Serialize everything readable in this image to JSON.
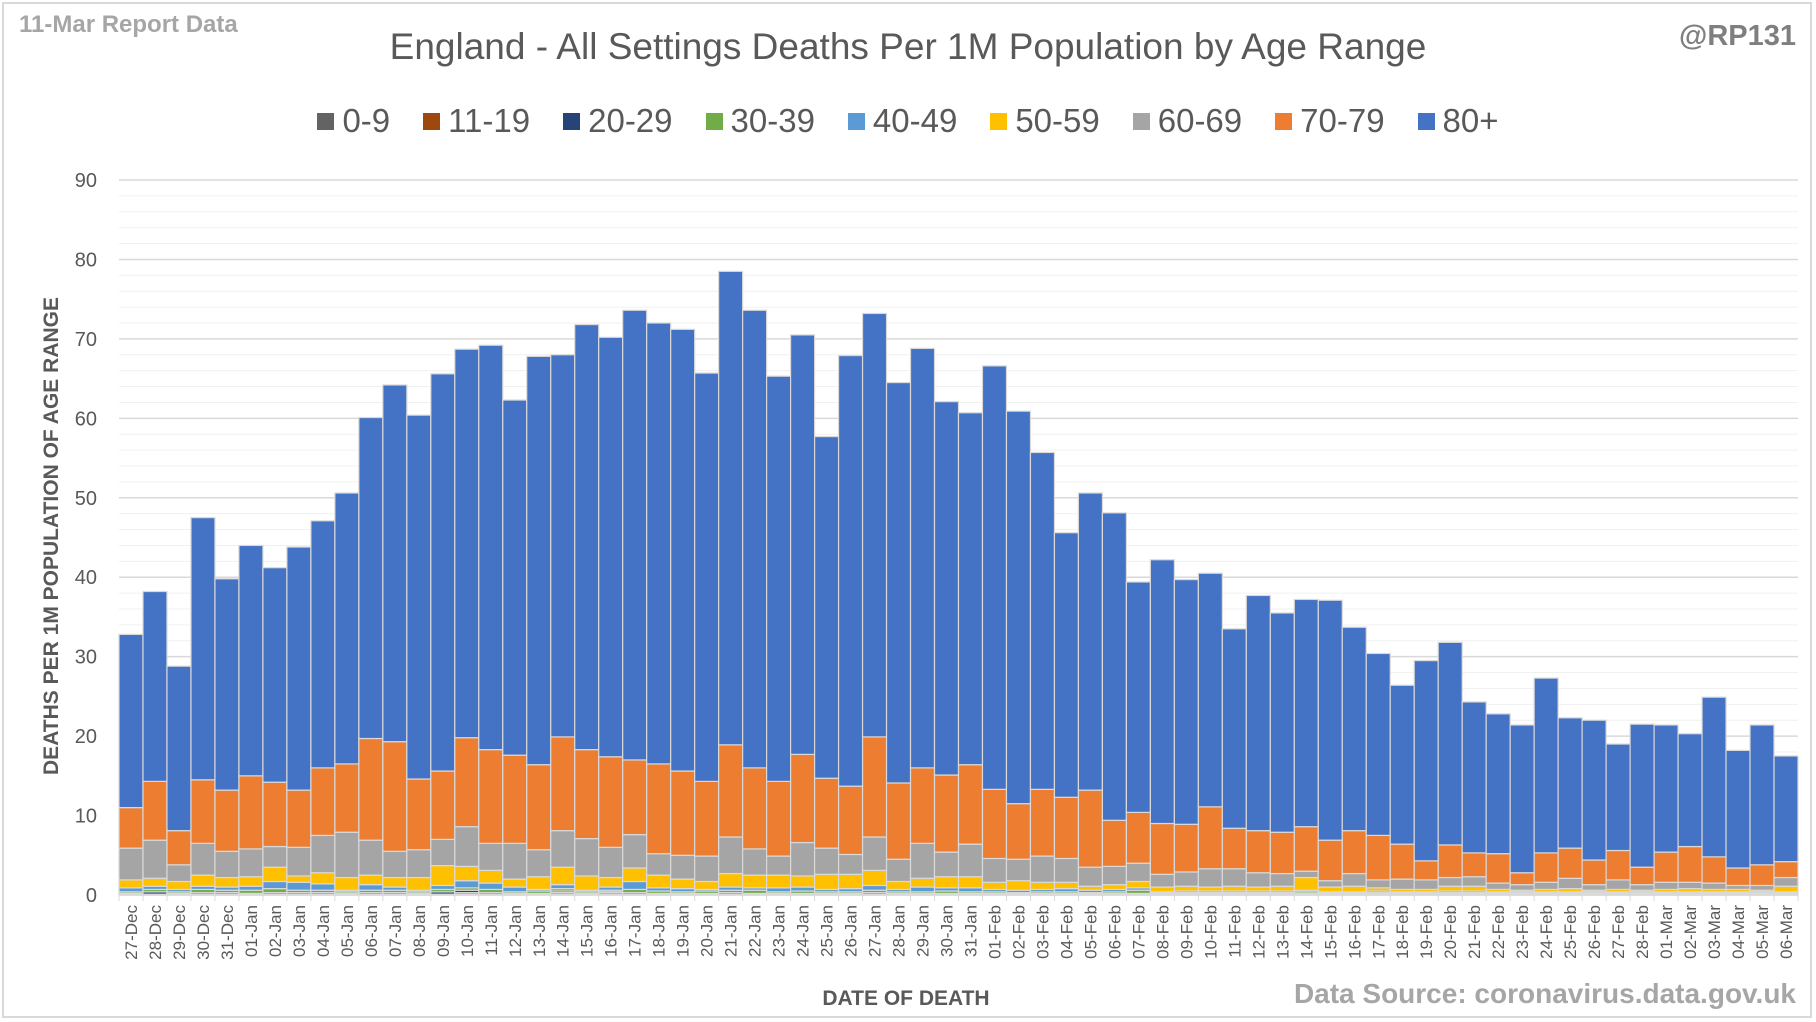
{
  "header": {
    "report_label": "11-Mar Report Data",
    "handle": "@RP131",
    "source": "Data Source: coronavirus.data.gov.uk"
  },
  "chart_data": {
    "type": "bar",
    "stacked": true,
    "title": "England - All Settings Deaths Per 1M Population by Age Range",
    "xlabel": "DATE OF DEATH",
    "ylabel": "DEATHS PER 1M POPULATION OF AGE RANGE",
    "ylim": [
      0,
      90
    ],
    "yticks": [
      0,
      10,
      20,
      30,
      40,
      50,
      60,
      70,
      80,
      90
    ],
    "grid": true,
    "legend_position": "top",
    "categories": [
      "27-Dec",
      "28-Dec",
      "29-Dec",
      "30-Dec",
      "31-Dec",
      "01-Jan",
      "02-Jan",
      "03-Jan",
      "04-Jan",
      "05-Jan",
      "06-Jan",
      "07-Jan",
      "08-Jan",
      "09-Jan",
      "10-Jan",
      "11-Jan",
      "12-Jan",
      "13-Jan",
      "14-Jan",
      "15-Jan",
      "16-Jan",
      "17-Jan",
      "18-Jan",
      "19-Jan",
      "20-Jan",
      "21-Jan",
      "22-Jan",
      "23-Jan",
      "24-Jan",
      "25-Jan",
      "26-Jan",
      "27-Jan",
      "28-Jan",
      "29-Jan",
      "30-Jan",
      "31-Jan",
      "01-Feb",
      "02-Feb",
      "03-Feb",
      "04-Feb",
      "05-Feb",
      "06-Feb",
      "07-Feb",
      "08-Feb",
      "09-Feb",
      "10-Feb",
      "11-Feb",
      "12-Feb",
      "13-Feb",
      "14-Feb",
      "15-Feb",
      "16-Feb",
      "17-Feb",
      "18-Feb",
      "19-Feb",
      "20-Feb",
      "21-Feb",
      "22-Feb",
      "23-Feb",
      "24-Feb",
      "25-Feb",
      "26-Feb",
      "27-Feb",
      "28-Feb",
      "01-Mar",
      "02-Mar",
      "03-Mar",
      "04-Mar",
      "05-Mar",
      "06-Mar"
    ],
    "series": [
      {
        "name": "0-9",
        "color": "#636363",
        "values": [
          0.1,
          0.1,
          0.1,
          0.1,
          0.1,
          0.1,
          0.1,
          0.1,
          0.1,
          0.1,
          0.1,
          0.1,
          0.1,
          0.1,
          0.1,
          0.1,
          0.1,
          0.1,
          0.1,
          0.1,
          0.1,
          0.1,
          0.1,
          0.1,
          0.1,
          0.1,
          0.1,
          0.1,
          0.1,
          0.1,
          0.1,
          0.1,
          0.1,
          0.1,
          0.1,
          0.1,
          0.1,
          0.1,
          0.1,
          0.1,
          0.1,
          0.1,
          0.1,
          0.1,
          0.1,
          0.1,
          0.1,
          0.1,
          0.1,
          0.1,
          0.1,
          0.1,
          0.1,
          0.1,
          0.1,
          0.1,
          0.1,
          0.1,
          0.1,
          0.1,
          0.1,
          0.1,
          0.1,
          0.1,
          0.1,
          0.1,
          0.1,
          0.1,
          0.1,
          0.1
        ]
      },
      {
        "name": "11-19",
        "color": "#9e480e",
        "values": [
          0,
          0,
          0,
          0,
          0,
          0,
          0,
          0,
          0,
          0,
          0,
          0,
          0,
          0,
          0.2,
          0,
          0,
          0,
          0.2,
          0,
          0.2,
          0,
          0,
          0,
          0,
          0,
          0,
          0,
          0,
          0,
          0,
          0,
          0,
          0,
          0,
          0,
          0,
          0,
          0,
          0,
          0,
          0,
          0,
          0,
          0,
          0,
          0,
          0,
          0,
          0,
          0,
          0,
          0,
          0,
          0,
          0,
          0,
          0,
          0,
          0,
          0,
          0,
          0,
          0,
          0,
          0,
          0,
          0,
          0,
          0
        ]
      },
      {
        "name": "20-29",
        "color": "#264478",
        "values": [
          0.1,
          0.3,
          0.1,
          0.2,
          0.2,
          0.1,
          0.2,
          0.2,
          0.2,
          0.1,
          0.2,
          0.2,
          0.1,
          0.3,
          0.3,
          0.2,
          0.1,
          0.1,
          0.2,
          0.1,
          0.1,
          0.2,
          0.1,
          0.1,
          0.1,
          0.2,
          0.1,
          0.1,
          0.1,
          0.1,
          0.1,
          0.2,
          0.1,
          0.1,
          0.1,
          0.1,
          0.1,
          0.1,
          0.1,
          0.1,
          0.1,
          0.1,
          0.1,
          0.1,
          0.1,
          0.1,
          0.1,
          0.1,
          0.1,
          0.1,
          0.1,
          0.1,
          0.1,
          0.1,
          0.1,
          0.1,
          0.1,
          0.1,
          0.1,
          0.1,
          0.1,
          0.1,
          0.1,
          0.1,
          0.1,
          0.1,
          0.1,
          0.1,
          0.1,
          0.1
        ]
      },
      {
        "name": "30-39",
        "color": "#70ad47",
        "values": [
          0.2,
          0.3,
          0.2,
          0.4,
          0.3,
          0.4,
          0.5,
          0.3,
          0.3,
          0.2,
          0.3,
          0.3,
          0.2,
          0.3,
          0.3,
          0.4,
          0.2,
          0.3,
          0.3,
          0.2,
          0.2,
          0.4,
          0.3,
          0.2,
          0.3,
          0.3,
          0.4,
          0.2,
          0.3,
          0.2,
          0.2,
          0.3,
          0.2,
          0.2,
          0.3,
          0.2,
          0.2,
          0.1,
          0.2,
          0.2,
          0.1,
          0.2,
          0.4,
          0.1,
          0.1,
          0.1,
          0.1,
          0.1,
          0.1,
          0.2,
          0.1,
          0.1,
          0.1,
          0.1,
          0.1,
          0.1,
          0.1,
          0.1,
          0.1,
          0.1,
          0.1,
          0.1,
          0.1,
          0.1,
          0.1,
          0.1,
          0.1,
          0.1,
          0.1,
          0.1
        ]
      },
      {
        "name": "40-49",
        "color": "#5b9bd5",
        "values": [
          0.5,
          0.4,
          0.3,
          0.4,
          0.4,
          0.5,
          0.9,
          1.0,
          0.8,
          0.2,
          0.7,
          0.4,
          0.2,
          0.5,
          0.9,
          0.8,
          0.6,
          0.2,
          0.5,
          0.2,
          0.4,
          1.0,
          0.4,
          0.4,
          0.2,
          0.4,
          0.3,
          0.5,
          0.5,
          0.3,
          0.4,
          0.6,
          0.3,
          0.6,
          0.4,
          0.5,
          0.3,
          0.3,
          0.3,
          0.4,
          0.3,
          0.3,
          0.3,
          0.1,
          0.2,
          0.2,
          0.2,
          0.2,
          0.2,
          0.2,
          0.1,
          0.1,
          0.2,
          0.1,
          0.1,
          0.2,
          0.2,
          0.1,
          0.1,
          0.1,
          0.1,
          0.1,
          0.1,
          0.1,
          0.1,
          0.1,
          0.1,
          0.1,
          0.1,
          0.1
        ]
      },
      {
        "name": "50-59",
        "color": "#ffc000",
        "values": [
          1.0,
          1.0,
          1.0,
          1.4,
          1.2,
          1.2,
          1.8,
          0.8,
          1.4,
          1.6,
          1.2,
          1.2,
          1.6,
          2.5,
          1.8,
          1.6,
          1.0,
          1.6,
          2.2,
          1.8,
          1.2,
          1.7,
          1.6,
          1.2,
          1.0,
          1.7,
          1.6,
          1.6,
          1.4,
          1.9,
          1.8,
          1.9,
          1.0,
          1.1,
          1.4,
          1.4,
          0.9,
          1.2,
          0.9,
          0.8,
          0.5,
          0.6,
          0.8,
          0.6,
          0.6,
          0.5,
          0.6,
          0.5,
          0.6,
          1.6,
          0.6,
          0.7,
          0.4,
          0.3,
          0.3,
          0.6,
          0.6,
          0.3,
          0.2,
          0.3,
          0.4,
          0.2,
          0.3,
          0.2,
          0.3,
          0.4,
          0.3,
          0.3,
          0.2,
          0.7
        ]
      },
      {
        "name": "60-69",
        "color": "#a5a5a5",
        "values": [
          4.0,
          4.8,
          2.1,
          4.0,
          3.3,
          3.5,
          2.6,
          3.6,
          4.7,
          5.7,
          4.4,
          3.3,
          3.5,
          3.3,
          5.0,
          3.4,
          4.5,
          3.4,
          4.6,
          4.7,
          3.8,
          4.2,
          2.7,
          3.0,
          3.2,
          4.6,
          3.3,
          2.4,
          4.2,
          3.3,
          2.5,
          4.2,
          2.8,
          4.4,
          3.1,
          4.1,
          3.0,
          2.7,
          3.3,
          3.0,
          2.4,
          2.3,
          2.3,
          1.6,
          1.8,
          2.3,
          2.2,
          1.8,
          1.6,
          0.8,
          0.8,
          1.6,
          1.0,
          1.3,
          1.2,
          1.1,
          1.2,
          0.8,
          0.7,
          0.9,
          1.3,
          0.7,
          1.2,
          0.7,
          0.9,
          0.8,
          0.8,
          0.5,
          0.6,
          1.1
        ]
      },
      {
        "name": "70-79",
        "color": "#ed7d31",
        "values": [
          5.1,
          7.4,
          4.3,
          8.0,
          7.7,
          9.2,
          8.1,
          7.2,
          8.5,
          8.6,
          12.8,
          13.8,
          8.9,
          8.6,
          11.2,
          11.8,
          11.1,
          10.7,
          11.8,
          11.2,
          11.4,
          9.4,
          11.3,
          10.6,
          9.4,
          11.6,
          10.2,
          9.4,
          11.1,
          8.8,
          8.6,
          12.6,
          9.6,
          9.5,
          9.7,
          10.0,
          8.7,
          7.0,
          8.4,
          7.7,
          9.7,
          5.8,
          6.4,
          6.4,
          6.0,
          7.8,
          5.1,
          5.3,
          5.2,
          5.6,
          5.1,
          5.4,
          5.6,
          4.4,
          2.4,
          4.1,
          3.0,
          3.7,
          1.5,
          3.7,
          3.8,
          3.1,
          3.7,
          2.2,
          3.8,
          4.5,
          3.3,
          2.2,
          2.6,
          2.0
        ]
      },
      {
        "name": "80+",
        "color": "#4472c4",
        "values": [
          21.8,
          23.9,
          20.7,
          33.0,
          26.6,
          29.0,
          27.0,
          30.6,
          31.1,
          34.1,
          40.4,
          44.9,
          45.8,
          50.0,
          48.9,
          50.9,
          44.7,
          51.4,
          48.1,
          53.5,
          52.8,
          56.6,
          55.5,
          55.6,
          51.4,
          59.6,
          57.6,
          51.0,
          52.8,
          43.0,
          54.2,
          53.3,
          50.4,
          52.8,
          47.0,
          44.3,
          53.3,
          49.4,
          42.4,
          33.3,
          37.4,
          38.7,
          29.0,
          33.2,
          30.8,
          29.4,
          25.1,
          29.6,
          27.6,
          28.6,
          30.2,
          25.6,
          22.9,
          20.0,
          25.2,
          25.5,
          19.0,
          17.6,
          18.6,
          22.0,
          16.4,
          17.6,
          13.4,
          18.0,
          16.0,
          14.2,
          20.1,
          14.8,
          17.6,
          13.3
        ]
      }
    ]
  }
}
